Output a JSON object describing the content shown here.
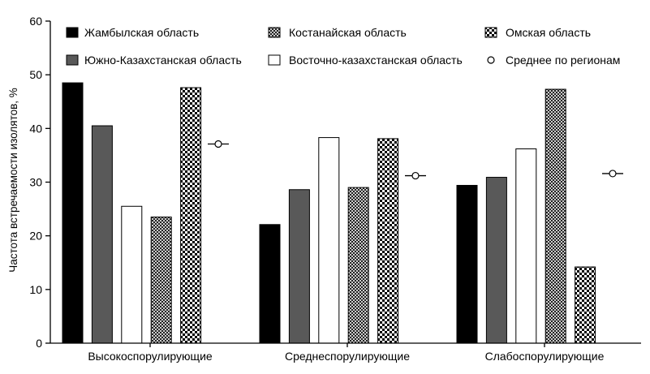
{
  "chart_data": {
    "type": "bar",
    "ylabel": "Частота встречаемости изолятов, %",
    "ylim": [
      0,
      60
    ],
    "yticks": [
      0,
      10,
      20,
      30,
      40,
      50,
      60
    ],
    "categories": [
      "Высокоспорулирующие",
      "Среднеспорулирующие",
      "Слабоспорулирующие"
    ],
    "series": [
      {
        "name": "Жамбылская область",
        "color": "#000000",
        "values": [
          48.5,
          22.1,
          29.4
        ]
      },
      {
        "name": "Южно-Казахстанская область",
        "color": "#595959",
        "values": [
          40.5,
          28.6,
          30.9
        ]
      },
      {
        "name": "Восточно-казахстанская область",
        "color": "#ffffff",
        "values": [
          25.5,
          38.3,
          36.2
        ]
      },
      {
        "name": "Костанайская область",
        "color": "#000000",
        "values": [
          23.5,
          29.0,
          47.3
        ]
      },
      {
        "name": "Омская область",
        "color": "#000000",
        "values": [
          47.6,
          38.1,
          14.2
        ]
      }
    ],
    "mean": {
      "name": "Среднее по регионам",
      "values": [
        37.1,
        31.2,
        31.6
      ]
    },
    "legend_position": "top"
  }
}
